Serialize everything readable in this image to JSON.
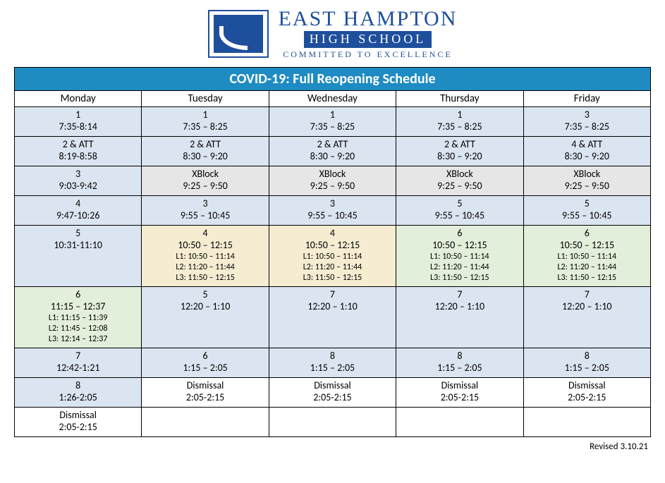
{
  "header": {
    "school_name": "EAST HAMPTON",
    "school_sub": "HIGH SCHOOL",
    "motto": "COMMITTED TO EXCELLENCE"
  },
  "title": "COVID-19: Full Reopening Schedule",
  "revised": "Revised 3.10.21",
  "colors": {
    "title_bg": "#1e8bc3",
    "title_fg": "#ffffff",
    "border": "#000000",
    "brand": "#1e4f9c",
    "cell_blue": "#dbe5f1",
    "cell_grey": "#e6e6e6",
    "cell_tan": "#f5ecd2",
    "cell_green": "#e2efda",
    "cell_white": "#ffffff"
  },
  "days": [
    "Monday",
    "Tuesday",
    "Wednesday",
    "Thursday",
    "Friday"
  ],
  "rows": [
    [
      {
        "period": "1",
        "time": "7:35-8:14",
        "bg": "blue"
      },
      {
        "period": "1",
        "time": "7:35 – 8:25",
        "bg": "blue"
      },
      {
        "period": "1",
        "time": "7:35 – 8:25",
        "bg": "blue"
      },
      {
        "period": "1",
        "time": "7:35 – 8:25",
        "bg": "blue"
      },
      {
        "period": "3",
        "time": "7:35 – 8:25",
        "bg": "blue"
      }
    ],
    [
      {
        "period": "2 & ATT",
        "time": "8:19-8:58",
        "bg": "blue"
      },
      {
        "period": "2 & ATT",
        "time": "8:30 – 9:20",
        "bg": "blue"
      },
      {
        "period": "2 & ATT",
        "time": "8:30 – 9:20",
        "bg": "blue"
      },
      {
        "period": "2 & ATT",
        "time": "8:30 – 9:20",
        "bg": "blue"
      },
      {
        "period": "4 & ATT",
        "time": "8:30 – 9:20",
        "bg": "blue"
      }
    ],
    [
      {
        "period": "3",
        "time": "9:03-9:42",
        "bg": "blue"
      },
      {
        "period": "XBlock",
        "time": "9:25 – 9:50",
        "bg": "grey"
      },
      {
        "period": "XBlock",
        "time": "9:25 – 9:50",
        "bg": "grey"
      },
      {
        "period": "XBlock",
        "time": "9:25 – 9:50",
        "bg": "grey"
      },
      {
        "period": "XBlock",
        "time": "9:25 – 9:50",
        "bg": "grey"
      }
    ],
    [
      {
        "period": "4",
        "time": "9:47-10:26",
        "bg": "blue"
      },
      {
        "period": "3",
        "time": "9:55 – 10:45",
        "bg": "blue"
      },
      {
        "period": "3",
        "time": "9:55 – 10:45",
        "bg": "blue"
      },
      {
        "period": "5",
        "time": "9:55 – 10:45",
        "bg": "blue"
      },
      {
        "period": "5",
        "time": "9:55 – 10:45",
        "bg": "blue"
      }
    ],
    [
      {
        "period": "5",
        "time": "10:31-11:10",
        "bg": "blue"
      },
      {
        "period": "4",
        "time": "10:50 – 12:15",
        "bg": "tan",
        "lunch": [
          "L1: 10:50 – 11:14",
          "L2: 11:20 – 11:44",
          "L3: 11:50 – 12:15"
        ]
      },
      {
        "period": "4",
        "time": "10:50 – 12:15",
        "bg": "tan",
        "lunch": [
          "L1: 10:50 – 11:14",
          "L2: 11:20 – 11:44",
          "L3: 11:50 – 12:15"
        ]
      },
      {
        "period": "6",
        "time": "10:50 – 12:15",
        "bg": "green",
        "lunch": [
          "L1: 10:50 – 11:14",
          "L2: 11:20 – 11:44",
          "L3: 11:50 – 12:15"
        ]
      },
      {
        "period": "6",
        "time": "10:50 – 12:15",
        "bg": "green",
        "lunch": [
          "L1: 10:50 – 11:14",
          "L2: 11:20 – 11:44",
          "L3: 11:50 – 12:15"
        ]
      }
    ],
    [
      {
        "period": "6",
        "time": "11:15 – 12:37",
        "bg": "green",
        "lunch": [
          "L1: 11:15 – 11:39",
          "L2: 11:45 – 12:08",
          "L3: 12:14 – 12:37"
        ]
      },
      {
        "period": "5",
        "time": "12:20 – 1:10",
        "bg": "blue"
      },
      {
        "period": "7",
        "time": "12:20 – 1:10",
        "bg": "blue"
      },
      {
        "period": "7",
        "time": "12:20 – 1:10",
        "bg": "blue"
      },
      {
        "period": "7",
        "time": "12:20 – 1:10",
        "bg": "blue"
      }
    ],
    [
      {
        "period": "7",
        "time": "12:42-1:21",
        "bg": "blue"
      },
      {
        "period": "6",
        "time": "1:15 – 2:05",
        "bg": "blue"
      },
      {
        "period": "8",
        "time": "1:15 – 2:05",
        "bg": "blue"
      },
      {
        "period": "8",
        "time": "1:15 – 2:05",
        "bg": "blue"
      },
      {
        "period": "8",
        "time": "1:15 – 2:05",
        "bg": "blue"
      }
    ],
    [
      {
        "period": "8",
        "time": "1:26-2:05",
        "bg": "blue"
      },
      {
        "period": "Dismissal",
        "time": "2:05-2:15",
        "bg": "white"
      },
      {
        "period": "Dismissal",
        "time": "2:05-2:15",
        "bg": "white"
      },
      {
        "period": "Dismissal",
        "time": "2:05-2:15",
        "bg": "white"
      },
      {
        "period": "Dismissal",
        "time": "2:05-2:15",
        "bg": "white"
      }
    ],
    [
      {
        "period": "Dismissal",
        "time": "2:05-2:15",
        "bg": "white"
      },
      {
        "bg": "white"
      },
      {
        "bg": "white"
      },
      {
        "bg": "white"
      },
      {
        "bg": "white"
      }
    ]
  ]
}
